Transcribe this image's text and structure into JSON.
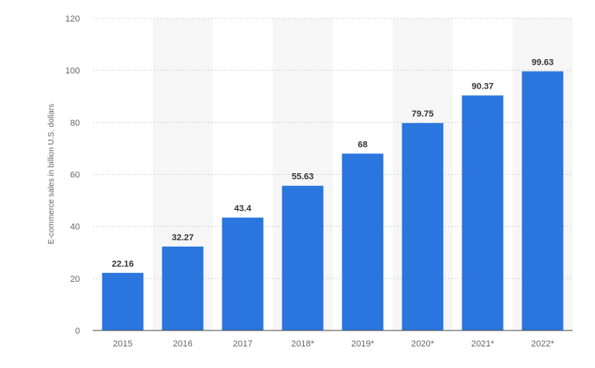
{
  "chart_data": {
    "type": "bar",
    "title": "",
    "xlabel": "",
    "ylabel": "E-commerce sales in billion U.S. dollars",
    "categories": [
      "2015",
      "2016",
      "2017",
      "2018*",
      "2019*",
      "2020*",
      "2021*",
      "2022*"
    ],
    "values": [
      22.16,
      32.27,
      43.4,
      55.63,
      68,
      79.75,
      90.37,
      99.63
    ],
    "value_labels": [
      "22.16",
      "32.27",
      "43.4",
      "55.63",
      "68",
      "79.75",
      "90.37",
      "99.63"
    ],
    "ylim": [
      0,
      120
    ],
    "yticks": [
      0,
      20,
      40,
      60,
      80,
      100,
      120
    ],
    "grid": true,
    "bar_color": "#2a75de",
    "alternate_band_color": "#f6f6f6"
  }
}
